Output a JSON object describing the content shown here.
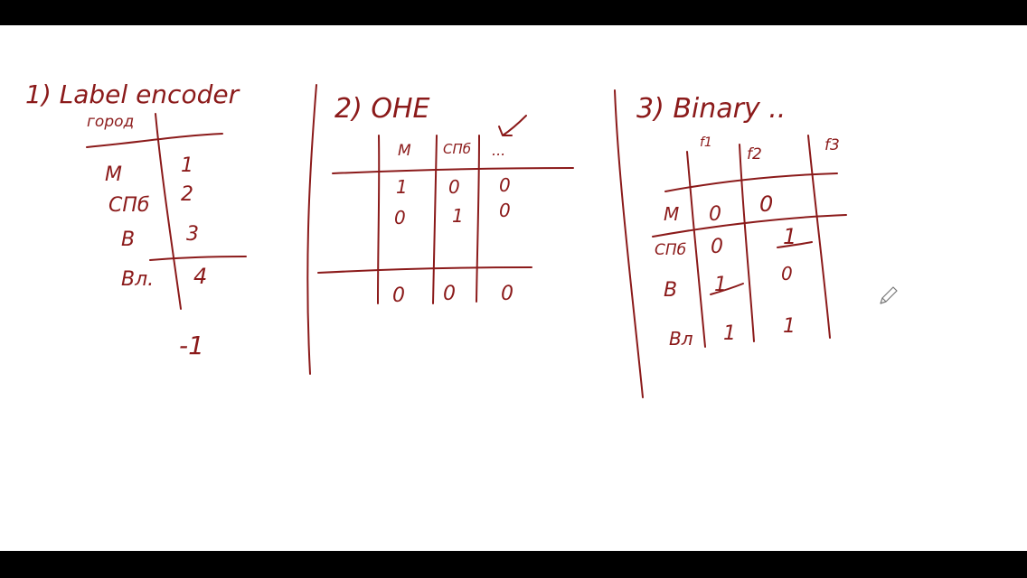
{
  "ink_color": "#8b1a1a",
  "section1": {
    "title": "1) Label encoder",
    "column_header": "город",
    "rows": [
      {
        "key": "М",
        "value": "1"
      },
      {
        "key": "СПб",
        "value": "2"
      },
      {
        "key": "В",
        "value": "3"
      },
      {
        "key": "Вл.",
        "value": "4"
      }
    ],
    "unknown_value": "-1"
  },
  "section2": {
    "title": "2) OHE",
    "headers": [
      "М",
      "СПб",
      "..."
    ],
    "rows": [
      [
        "1",
        "0",
        "0"
      ],
      [
        "0",
        "1",
        "0"
      ]
    ],
    "unknown_row": [
      "0",
      "0",
      "0"
    ]
  },
  "section3": {
    "title": "3) Binary ..",
    "headers": [
      "f1",
      "f2",
      "f3"
    ],
    "rows": [
      {
        "key": "М",
        "f1": "0",
        "f2": "0"
      },
      {
        "key": "СПб",
        "f1": "0",
        "f2": "1"
      },
      {
        "key": "В",
        "f1": "1",
        "f2": "0"
      },
      {
        "key": "Вл",
        "f1": "1",
        "f2": "1"
      }
    ]
  },
  "cursor_icon": "pencil-icon"
}
